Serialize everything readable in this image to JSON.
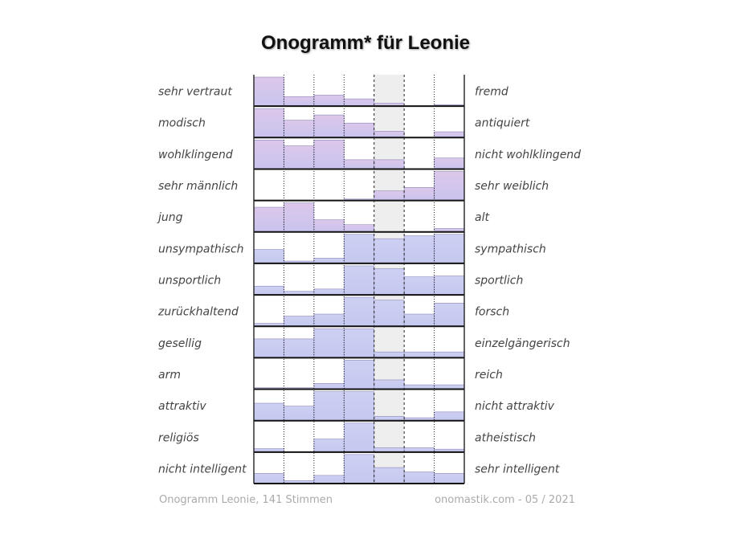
{
  "title": "Onogramm* für Leonie",
  "footer": {
    "left": "Onogramm Leonie, 141 Stimmen",
    "right": "onomastik.com - 05 / 2021"
  },
  "colors": {
    "warm_top": "#dcc7ea",
    "warm_bottom": "#c9c4ee",
    "cool_top": "#cdd0f2",
    "cool_bottom": "#c5c8ef",
    "highlight_column": "#eeeeee",
    "bar_edge": "#8a88b8"
  },
  "chart_data": {
    "type": "bar",
    "scale_steps": 7,
    "highlight_column": 4,
    "rows": [
      {
        "left": "sehr vertraut",
        "right": "fremd",
        "values": [
          100,
          33,
          38,
          25,
          10,
          0,
          5
        ]
      },
      {
        "left": "modisch",
        "right": "antiquiert",
        "values": [
          100,
          60,
          78,
          50,
          22,
          0,
          20
        ]
      },
      {
        "left": "wohlklingend",
        "right": "nicht wohlklingend",
        "values": [
          100,
          80,
          100,
          32,
          32,
          0,
          38
        ]
      },
      {
        "left": "sehr männlich",
        "right": "sehr weiblich",
        "values": [
          0,
          0,
          0,
          5,
          33,
          45,
          100
        ]
      },
      {
        "left": "jung",
        "right": "alt",
        "values": [
          85,
          100,
          42,
          25,
          0,
          0,
          12
        ]
      },
      {
        "left": "unsympathisch",
        "right": "sympathisch",
        "values": [
          48,
          8,
          18,
          100,
          85,
          95,
          100
        ]
      },
      {
        "left": "unsportlich",
        "right": "sportlich",
        "values": [
          30,
          12,
          20,
          100,
          90,
          62,
          65
        ]
      },
      {
        "left": "zurückhaltend",
        "right": "forsch",
        "values": [
          10,
          35,
          42,
          100,
          90,
          42,
          80
        ]
      },
      {
        "left": "gesellig",
        "right": "einzelgängerisch",
        "values": [
          65,
          65,
          100,
          100,
          20,
          20,
          20
        ]
      },
      {
        "left": "arm",
        "right": "reich",
        "values": [
          5,
          5,
          20,
          100,
          32,
          15,
          15
        ]
      },
      {
        "left": "attraktiv",
        "right": "nicht attraktiv",
        "values": [
          60,
          50,
          100,
          100,
          15,
          10,
          30
        ]
      },
      {
        "left": "religiös",
        "right": "atheistisch",
        "values": [
          12,
          0,
          45,
          100,
          15,
          15,
          10
        ]
      },
      {
        "left": "nicht intelligent",
        "right": "sehr intelligent",
        "values": [
          35,
          10,
          28,
          100,
          55,
          40,
          35
        ]
      }
    ]
  }
}
